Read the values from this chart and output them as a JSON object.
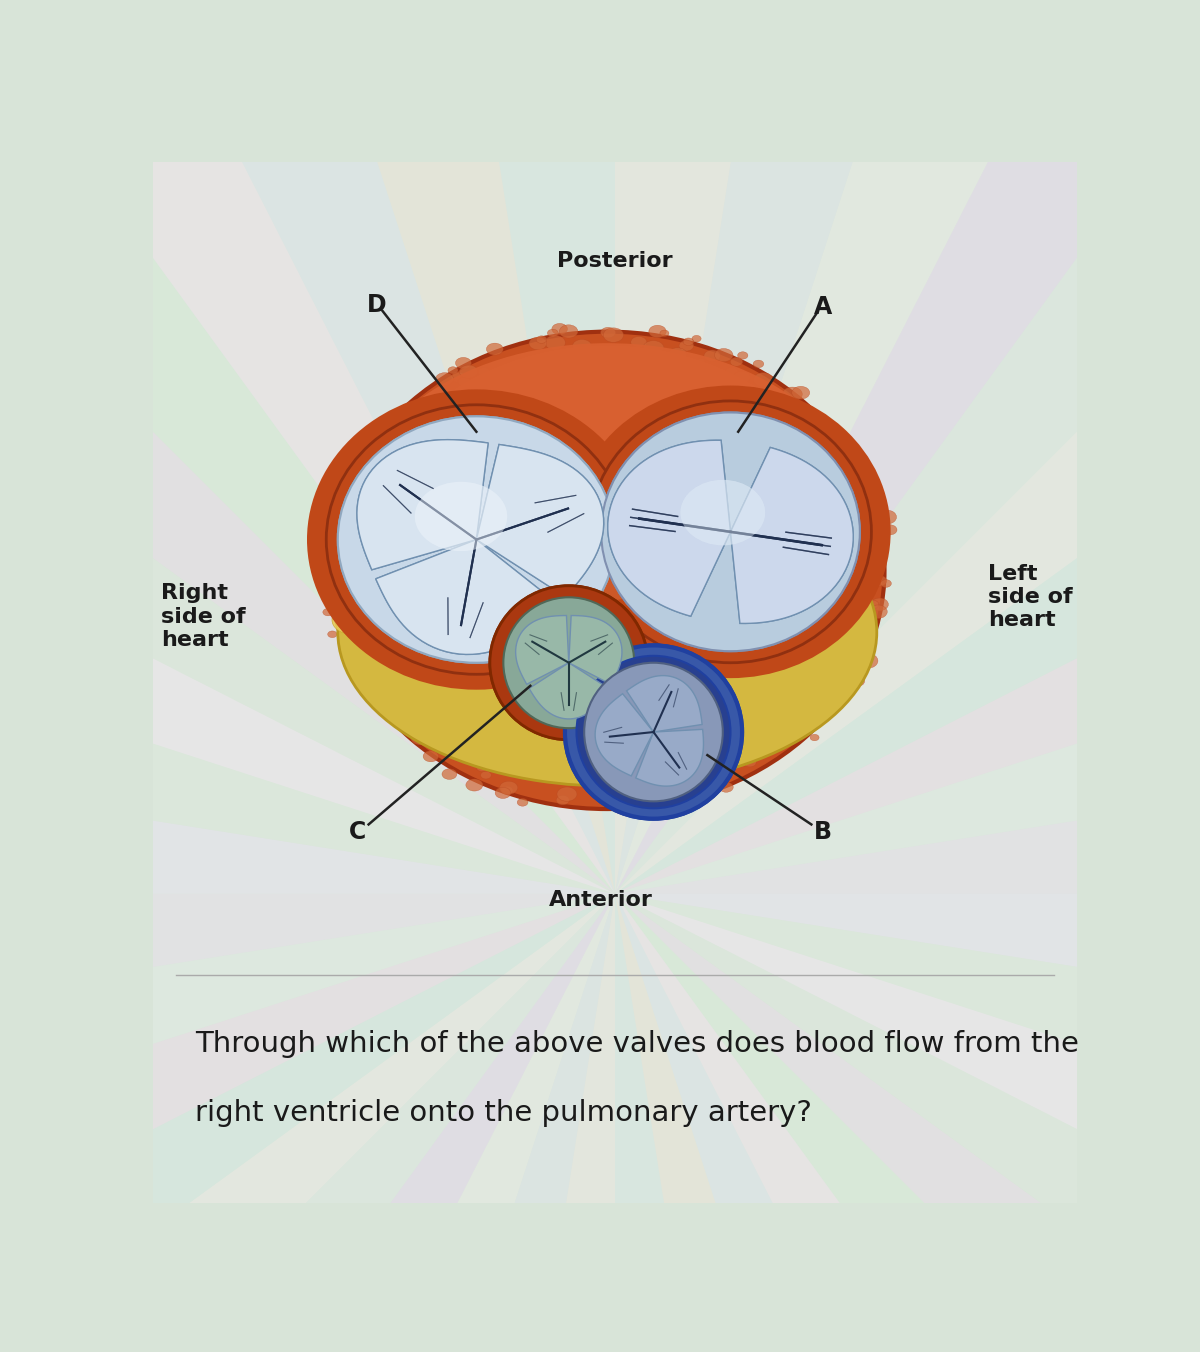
{
  "title_posterior": "Posterior",
  "title_anterior": "Anterior",
  "label_right": "Right\nside of\nheart",
  "label_left": "Left\nside of\nheart",
  "label_A": "A",
  "label_B": "B",
  "label_C": "C",
  "label_D": "D",
  "question_line1": "Through which of the above valves does blood flow from the",
  "question_line2": "right ventricle onto the pulmonary artery?",
  "text_color": "#1a1a1a",
  "question_fontsize": 21,
  "label_fontsize": 17,
  "direction_fontsize": 15
}
